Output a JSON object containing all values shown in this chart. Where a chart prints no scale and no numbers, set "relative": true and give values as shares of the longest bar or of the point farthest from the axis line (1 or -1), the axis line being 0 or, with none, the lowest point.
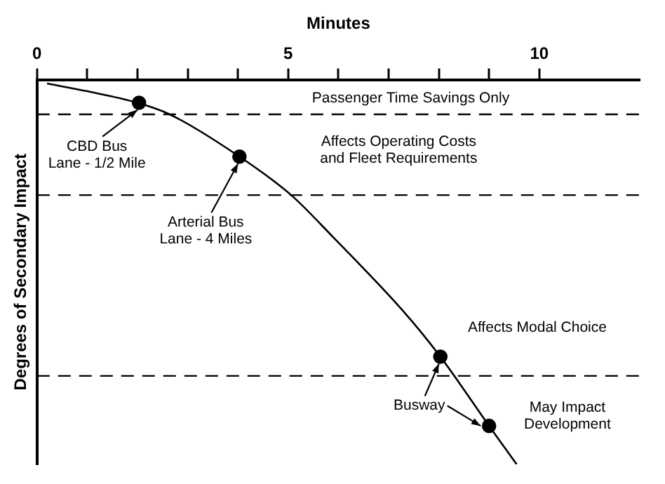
{
  "chart_data": {
    "type": "line",
    "relative": true,
    "xlabel": "Minutes",
    "ylabel": "Degrees of Secondary Impact",
    "xlim": [
      0,
      12
    ],
    "xticks": [
      0,
      {
        "value": 1,
        "label": null
      },
      {
        "value": 2,
        "label": null
      },
      {
        "value": 3,
        "label": null
      },
      {
        "value": 4,
        "label": null
      },
      5,
      {
        "value": 6,
        "label": null
      },
      {
        "value": 7,
        "label": null
      },
      {
        "value": 8,
        "label": null
      },
      {
        "value": 9,
        "label": null
      },
      10
    ],
    "tick_labels": "x",
    "grid": false,
    "legend": false,
    "series": [
      {
        "color": "#000000",
        "marker": "none",
        "line_style": "solid",
        "x": [
          0.2,
          1,
          2,
          2.64,
          4.03,
          5.06,
          5.9,
          7.28,
          8.03,
          9,
          9.55
        ],
        "values": [
          -0.01,
          -0.03,
          -0.06,
          -0.09,
          -0.2,
          -0.3,
          -0.41,
          -0.6,
          -0.72,
          -0.9,
          -1
        ]
      },
      {
        "type": "scatter",
        "color": "#000000",
        "marker": "circle",
        "x": [
          2.03,
          4.03,
          8.03,
          9
        ],
        "values": [
          -0.06,
          -0.2,
          -0.72,
          -0.9
        ]
      }
    ],
    "ref_lines": [
      {
        "axis": "y",
        "value": -0.09,
        "line_style": "dashed"
      },
      {
        "axis": "y",
        "value": -0.3,
        "line_style": "dashed"
      },
      {
        "axis": "y",
        "value": -0.77,
        "line_style": "dashed"
      }
    ],
    "annotations": [
      {
        "text": "CBD Bus\nLane - 1/2 Mile",
        "x": 2.03,
        "y": -0.06
      },
      {
        "text": "Arterial Bus\nLane - 4 Miles",
        "x": 4.03,
        "y": -0.2
      },
      {
        "text": "Busway",
        "x": 8.03,
        "y": -0.72
      },
      "Passenger Time Savings Only",
      "Affects Operating Costs\nand Fleet Requirements",
      "Affects Modal Choice",
      "May Impact\nDevelopment"
    ]
  }
}
